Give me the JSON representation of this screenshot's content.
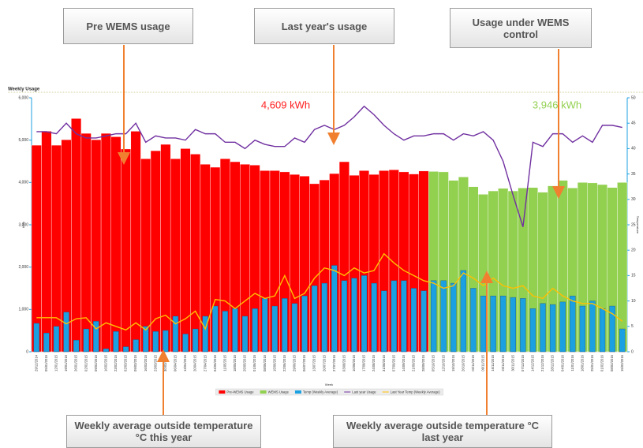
{
  "chart_data": {
    "type": "bar",
    "title": "Weekly Usage",
    "y_label": "kWh",
    "y2_label": "Temperature",
    "x_label": "Week",
    "annotations": [
      "Pre WEMS usage",
      "Last year's usage",
      "Usage under WEMS control",
      "Weekly average outside temperature °C this year",
      "Weekly average outside temperature °C last year"
    ],
    "average_labels": [
      {
        "text": "4,609 kWh",
        "color": "#ff2020"
      },
      {
        "text": "3,946 kWh",
        "color": "#92d050"
      }
    ],
    "categories": [
      "29/12/2014",
      "05/01/2015",
      "12/01/2015",
      "19/01/2015",
      "26/01/2015",
      "02/02/2015",
      "09/02/2015",
      "16/02/2015",
      "23/02/2015",
      "02/03/2015",
      "09/03/2015",
      "16/03/2015",
      "23/03/2015",
      "30/03/2015",
      "06/04/2015",
      "13/04/2015",
      "20/04/2015",
      "27/04/2015",
      "04/05/2015",
      "11/05/2015",
      "18/05/2015",
      "25/05/2015",
      "01/06/2015",
      "08/06/2015",
      "15/06/2015",
      "22/06/2015",
      "29/06/2015",
      "06/07/2015",
      "13/07/2015",
      "20/07/2015",
      "27/07/2015",
      "03/08/2015",
      "10/08/2015",
      "17/08/2015",
      "24/08/2015",
      "31/08/2015",
      "07/09/2015",
      "14/09/2015",
      "21/09/2015",
      "28/09/2015",
      "05/10/2015",
      "12/10/2015",
      "19/10/2015",
      "26/10/2015",
      "02/11/2015",
      "09/11/2015",
      "16/11/2015",
      "23/11/2015",
      "30/11/2015",
      "07/12/2015",
      "14/12/2015",
      "21/12/2015",
      "28/12/2015",
      "04/01/2016",
      "11/01/2016",
      "18/01/2016",
      "25/01/2016",
      "01/02/2016",
      "08/02/2016",
      "15/02/2016"
    ],
    "series": [
      {
        "name": "Pre-WEMS Usage",
        "type": "bar",
        "color": "#ff0000",
        "values": [
          4880,
          5210,
          4880,
          5010,
          5510,
          5160,
          5010,
          5160,
          5080,
          4790,
          5210,
          4560,
          4750,
          4900,
          4560,
          4800,
          4670,
          4430,
          4360,
          4560,
          4490,
          4430,
          4410,
          4280,
          4280,
          4250,
          4190,
          4150,
          3970,
          4060,
          4210,
          4490,
          4170,
          4280,
          4190,
          4280,
          4300,
          4250,
          4200,
          4270,
          null,
          null,
          null,
          null,
          null,
          null,
          null,
          null,
          null,
          null,
          null,
          null,
          null,
          null,
          null,
          null,
          null,
          null,
          null,
          null
        ]
      },
      {
        "name": "WEMS Usage",
        "type": "bar",
        "color": "#92d050",
        "values": [
          null,
          null,
          null,
          null,
          null,
          null,
          null,
          null,
          null,
          null,
          null,
          null,
          null,
          null,
          null,
          null,
          null,
          null,
          null,
          null,
          null,
          null,
          null,
          null,
          null,
          null,
          null,
          null,
          null,
          null,
          null,
          null,
          null,
          null,
          null,
          null,
          null,
          null,
          null,
          null,
          4260,
          4250,
          4050,
          4130,
          3900,
          3720,
          3800,
          3860,
          3800,
          3870,
          3880,
          3770,
          3920,
          4050,
          3870,
          4000,
          3990,
          3950,
          3880,
          4000
        ]
      },
      {
        "name": "Temp (Weekly Average)",
        "type": "bar",
        "axis": "y2",
        "color": "#1ba1e2",
        "values": [
          5.6,
          3.7,
          5,
          7.8,
          2.3,
          4.5,
          6,
          0.6,
          4,
          1,
          2.4,
          5,
          4,
          4.2,
          7,
          3.5,
          4.5,
          7,
          9,
          8,
          8.5,
          7,
          8.5,
          10.5,
          9,
          10.5,
          9.5,
          11,
          13,
          13.5,
          17,
          14,
          14.5,
          15,
          13.5,
          12,
          14,
          14,
          12.5,
          12,
          14,
          14,
          13.5,
          16,
          12.5,
          11,
          11,
          11,
          10.7,
          10.5,
          8.5,
          9.5,
          9.3,
          9.8,
          11,
          9,
          10,
          8.5,
          9,
          4.5
        ]
      },
      {
        "name": "Last year Usage",
        "type": "line",
        "color": "#7030a0",
        "values": [
          5200,
          5200,
          5150,
          5400,
          5150,
          5050,
          5050,
          5100,
          5150,
          5150,
          5400,
          4950,
          5100,
          5050,
          5050,
          5000,
          5250,
          5150,
          5150,
          4950,
          4950,
          4800,
          5000,
          4900,
          4850,
          4850,
          5050,
          4950,
          5250,
          5350,
          5250,
          5350,
          5550,
          5800,
          5600,
          5350,
          5150,
          5000,
          5100,
          5100,
          5150,
          5150,
          5000,
          5150,
          5100,
          5200,
          5000,
          4500,
          3700,
          2950,
          4950,
          4850,
          5150,
          5150,
          4950,
          5100,
          4950,
          5350,
          5350,
          5300
        ]
      },
      {
        "name": "Last Year Temp (Weekly Average)",
        "type": "line",
        "axis": "y2",
        "color": "#ffc000",
        "values": [
          6.7,
          6.7,
          6.7,
          5.5,
          6.5,
          6.7,
          4.5,
          5.7,
          5,
          4.3,
          5.7,
          4.3,
          6.5,
          7.2,
          5.5,
          6.5,
          8,
          4.5,
          10.3,
          10,
          8.5,
          10,
          11.5,
          10.5,
          11,
          15,
          10.5,
          11.5,
          14.5,
          16.5,
          16,
          15,
          16.5,
          15.5,
          16,
          19.3,
          17.5,
          16,
          15,
          14,
          13.5,
          12.5,
          13,
          15.5,
          14.5,
          13,
          14.5,
          13,
          12.5,
          13,
          11,
          10.5,
          12.5,
          11,
          10,
          9.5,
          9.5,
          8.5,
          7.5,
          6
        ]
      }
    ],
    "ylim": [
      0,
      6000
    ],
    "yticks": [
      0,
      {
        "value": 1000,
        "label": "1,000"
      },
      {
        "value": 2000,
        "label": "2,000"
      },
      {
        "value": 3000,
        "label": "3,000"
      },
      {
        "value": 4000,
        "label": "4,000"
      },
      {
        "value": 5000,
        "label": "5,000"
      },
      {
        "value": 6000,
        "label": "6,000"
      }
    ],
    "y2lim": [
      0,
      50
    ],
    "y2ticks": [
      0,
      5,
      10,
      15,
      20,
      25,
      30,
      35,
      40,
      45,
      50
    ],
    "grid": false,
    "legend": "bottom"
  }
}
